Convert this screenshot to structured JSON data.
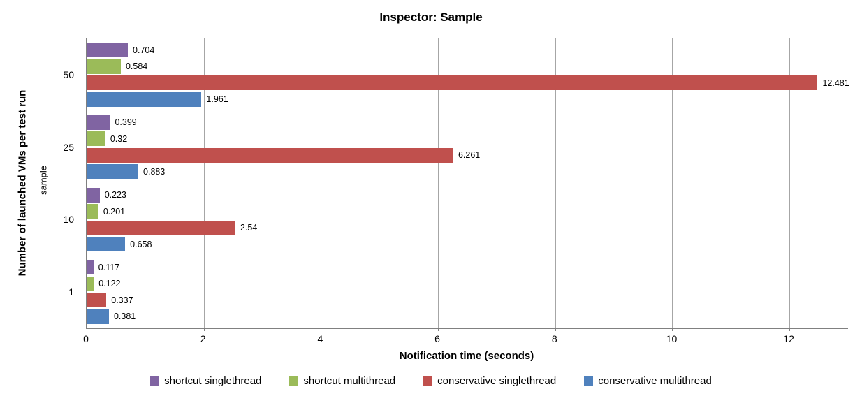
{
  "chart_data": {
    "type": "bar",
    "orientation": "horizontal",
    "title": "Inspector: Sample",
    "xlabel": "Notification time (seconds)",
    "ylabel": "Number of launched VMs per test run",
    "ylabel_secondary": "sample",
    "categories": [
      "50",
      "25",
      "10",
      "1"
    ],
    "series": [
      {
        "name": "shortcut singlethread",
        "color": "#8064A2",
        "values": [
          0.704,
          0.399,
          0.223,
          0.117
        ],
        "labels": [
          "0.704",
          "0.399",
          "0.223",
          "0.117"
        ]
      },
      {
        "name": "shortcut multithread",
        "color": "#9BBB59",
        "values": [
          0.584,
          0.32,
          0.201,
          0.122
        ],
        "labels": [
          "0.584",
          "0.32",
          "0.201",
          "0.122"
        ]
      },
      {
        "name": "conservative singlethread",
        "color": "#C0504D",
        "values": [
          12.481,
          6.261,
          2.54,
          0.337
        ],
        "labels": [
          "12.481",
          "6.261",
          "2.54",
          "0.337"
        ]
      },
      {
        "name": "conservative multithread",
        "color": "#4F81BD",
        "values": [
          1.961,
          0.883,
          0.658,
          0.381
        ],
        "labels": [
          "1.961",
          "0.883",
          "0.658",
          "0.381"
        ]
      }
    ],
    "xlim": [
      0,
      13
    ],
    "xticks": [
      0,
      2,
      4,
      6,
      8,
      10,
      12
    ],
    "grid": true,
    "legend_position": "bottom",
    "colors": {
      "gridline": "#A6A6A6",
      "axis": "#808080",
      "text": "#000000"
    }
  }
}
